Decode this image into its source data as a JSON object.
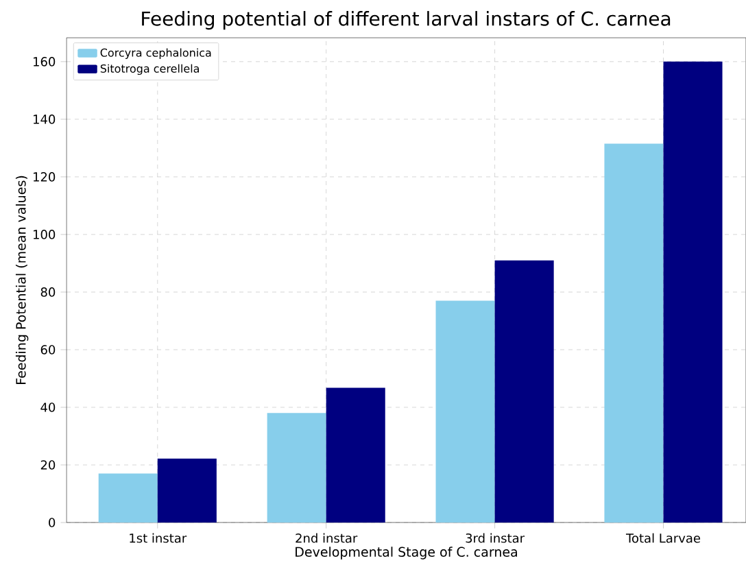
{
  "chart_data": {
    "type": "bar",
    "title": "Feeding potential of different larval instars of C. carnea",
    "xlabel": "Developmental Stage of C. carnea",
    "ylabel": "Feeding Potential (mean values)",
    "categories": [
      "1st instar",
      "2nd instar",
      "3rd instar",
      "Total Larvae"
    ],
    "series": [
      {
        "name": "Corcyra cephalonica",
        "color": "#87ceeb",
        "values": [
          17,
          38,
          77,
          131.5
        ]
      },
      {
        "name": "Sitotroga cerellela",
        "color": "#000080",
        "values": [
          22.2,
          46.8,
          91,
          160
        ]
      }
    ],
    "ylim": [
      0,
      168.3
    ],
    "yticks": [
      0,
      20,
      40,
      60,
      80,
      100,
      120,
      140,
      160
    ],
    "grid": true,
    "legend": "top left"
  }
}
